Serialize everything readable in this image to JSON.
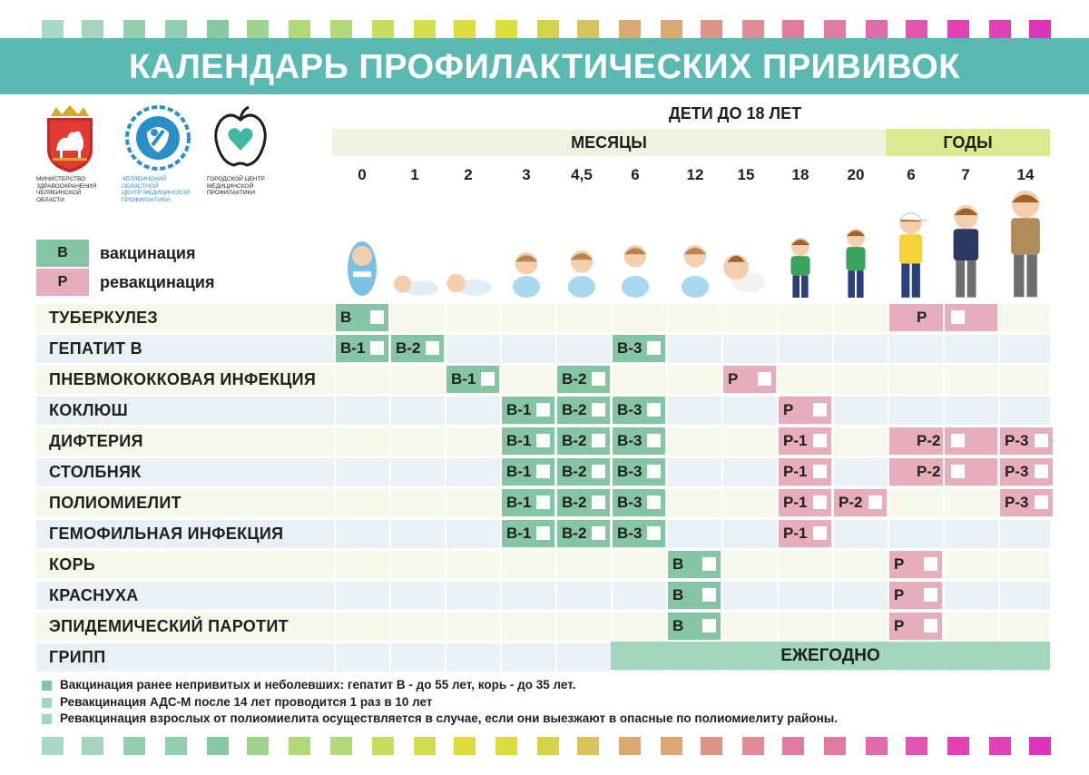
{
  "title": "КАЛЕНДАРЬ ПРОФИЛАКТИЧЕСКИХ ПРИВИВОК",
  "logos": {
    "ministry": [
      "МИНИСТЕРСТВО",
      "ЗДРАВООХРАНЕНИЯ",
      "ЧЕЛЯБИНСКОЙ ОБЛАСТИ"
    ],
    "regional_center": [
      "ЧЕЛЯБИНСКИЙ ОБЛАСТНОЙ",
      "ЦЕНТР МЕДИЦИНСКОЙ",
      "ПРОФИЛАКТИКИ"
    ],
    "city_center": [
      "ГОРОДСКОЙ ЦЕНТР",
      "МЕДИЦИНСКОЙ",
      "ПРОФИЛАКТИКИ"
    ]
  },
  "header": {
    "subtitle": "ДЕТИ ДО 18 ЛЕТ",
    "months_label": "МЕСЯЦЫ",
    "years_label": "ГОДЫ",
    "ages": [
      "0",
      "1",
      "2",
      "3",
      "4,5",
      "6",
      "12",
      "15",
      "18",
      "20",
      "6",
      "7",
      "14"
    ]
  },
  "legend": {
    "vaccination": {
      "code": "В",
      "label": "вакцинация"
    },
    "revaccination": {
      "code": "Р",
      "label": "ревакцинация"
    }
  },
  "colors": {
    "banner": "#5ab9b1",
    "vaccination": "#86c5a3",
    "revaccination": "#e6aebd",
    "annual": "#a2d6bd",
    "row_light_yellow": "#f6f8ea",
    "row_light_blue": "#e8f2f6"
  },
  "rows": [
    {
      "name": "ТУБЕРКУЛЕЗ",
      "cells": [
        {
          "col": 0,
          "span": 1,
          "type": "v",
          "label": "В"
        },
        {
          "col": 10,
          "span": 2,
          "type": "r",
          "label": "Р"
        }
      ]
    },
    {
      "name": "ГЕПАТИТ В",
      "cells": [
        {
          "col": 0,
          "span": 1,
          "type": "v",
          "label": "В-1"
        },
        {
          "col": 1,
          "span": 1,
          "type": "v",
          "label": "В-2"
        },
        {
          "col": 5,
          "span": 1,
          "type": "v",
          "label": "В-3"
        }
      ]
    },
    {
      "name": "ПНЕВМОКОККОВАЯ ИНФЕКЦИЯ",
      "cells": [
        {
          "col": 2,
          "span": 1,
          "type": "v",
          "label": "В-1"
        },
        {
          "col": 4,
          "span": 1,
          "type": "v",
          "label": "В-2"
        },
        {
          "col": 7,
          "span": 1,
          "type": "r",
          "label": "Р"
        }
      ]
    },
    {
      "name": "КОКЛЮШ",
      "cells": [
        {
          "col": 3,
          "span": 1,
          "type": "v",
          "label": "В-1"
        },
        {
          "col": 4,
          "span": 1,
          "type": "v",
          "label": "В-2"
        },
        {
          "col": 5,
          "span": 1,
          "type": "v",
          "label": "В-3"
        },
        {
          "col": 8,
          "span": 1,
          "type": "r",
          "label": "Р"
        }
      ]
    },
    {
      "name": "ДИФТЕРИЯ",
      "cells": [
        {
          "col": 3,
          "span": 1,
          "type": "v",
          "label": "В-1"
        },
        {
          "col": 4,
          "span": 1,
          "type": "v",
          "label": "В-2"
        },
        {
          "col": 5,
          "span": 1,
          "type": "v",
          "label": "В-3"
        },
        {
          "col": 8,
          "span": 1,
          "type": "r",
          "label": "Р-1"
        },
        {
          "col": 10,
          "span": 2,
          "type": "r",
          "label": "Р-2"
        },
        {
          "col": 12,
          "span": 1,
          "type": "r",
          "label": "Р-3"
        }
      ]
    },
    {
      "name": "СТОЛБНЯК",
      "cells": [
        {
          "col": 3,
          "span": 1,
          "type": "v",
          "label": "В-1"
        },
        {
          "col": 4,
          "span": 1,
          "type": "v",
          "label": "В-2"
        },
        {
          "col": 5,
          "span": 1,
          "type": "v",
          "label": "В-3"
        },
        {
          "col": 8,
          "span": 1,
          "type": "r",
          "label": "Р-1"
        },
        {
          "col": 10,
          "span": 2,
          "type": "r",
          "label": "Р-2"
        },
        {
          "col": 12,
          "span": 1,
          "type": "r",
          "label": "Р-3"
        }
      ]
    },
    {
      "name": "ПОЛИОМИЕЛИТ",
      "cells": [
        {
          "col": 3,
          "span": 1,
          "type": "v",
          "label": "В-1"
        },
        {
          "col": 4,
          "span": 1,
          "type": "v",
          "label": "В-2"
        },
        {
          "col": 5,
          "span": 1,
          "type": "v",
          "label": "В-3"
        },
        {
          "col": 8,
          "span": 1,
          "type": "r",
          "label": "Р-1"
        },
        {
          "col": 9,
          "span": 1,
          "type": "r",
          "label": "Р-2"
        },
        {
          "col": 12,
          "span": 1,
          "type": "r",
          "label": "Р-3"
        }
      ]
    },
    {
      "name": "ГЕМОФИЛЬНАЯ ИНФЕКЦИЯ",
      "cells": [
        {
          "col": 3,
          "span": 1,
          "type": "v",
          "label": "В-1"
        },
        {
          "col": 4,
          "span": 1,
          "type": "v",
          "label": "В-2"
        },
        {
          "col": 5,
          "span": 1,
          "type": "v",
          "label": "В-3"
        },
        {
          "col": 8,
          "span": 1,
          "type": "r",
          "label": "Р-1"
        }
      ]
    },
    {
      "name": "КОРЬ",
      "cells": [
        {
          "col": 6,
          "span": 1,
          "type": "v",
          "label": "В"
        },
        {
          "col": 10,
          "span": 1,
          "type": "r",
          "label": "Р"
        }
      ]
    },
    {
      "name": "КРАСНУХА",
      "cells": [
        {
          "col": 6,
          "span": 1,
          "type": "v",
          "label": "В"
        },
        {
          "col": 10,
          "span": 1,
          "type": "r",
          "label": "Р"
        }
      ]
    },
    {
      "name": "ЭПИДЕМИЧЕСКИЙ ПАРОТИТ",
      "cells": [
        {
          "col": 6,
          "span": 1,
          "type": "v",
          "label": "В"
        },
        {
          "col": 10,
          "span": 1,
          "type": "r",
          "label": "Р"
        }
      ]
    },
    {
      "name": "ГРИПП",
      "cells": []
    }
  ],
  "annual_label": "ЕЖЕГОДНО",
  "notes": [
    "Вакцинация ранее непривитых и неболевших: гепатит В - до 55 лет, корь - до 35 лет.",
    "Ревакцинация АДС-М после 14 лет проводится 1 раз в 10 лет",
    "Ревакцинация взрослых от полиомиелита осуществляется в случае, если они выезжают в опасные по полиомиелиту районы."
  ]
}
